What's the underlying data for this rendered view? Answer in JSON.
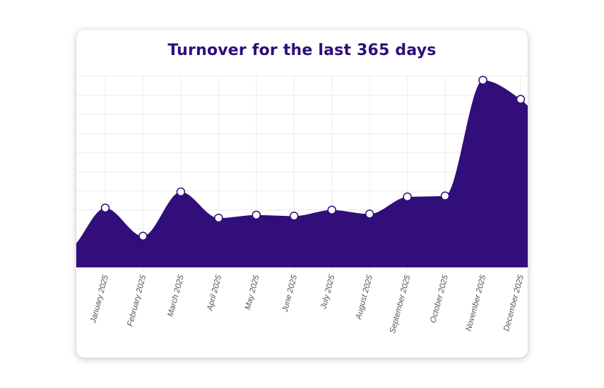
{
  "chart_data": {
    "type": "area",
    "title": "Turnover for the last 365 days",
    "xlabel": "",
    "ylabel": "",
    "categories": [
      "January 2025",
      "February 2025",
      "March 2025",
      "April 2025",
      "May 2025",
      "June 2025",
      "July 2025",
      "August 2025",
      "September 2025",
      "October 2025",
      "November 2025",
      "December 2025"
    ],
    "series": [
      {
        "values": [
          2.95,
          1.55,
          3.75,
          2.45,
          2.6,
          2.55,
          2.85,
          2.65,
          3.5,
          3.55,
          9.3,
          8.35
        ],
        "color": "#310e7a"
      }
    ],
    "start_value": 1.2,
    "ylim": [
      0,
      9.5
    ],
    "grid": true,
    "y_tick_labels_visible": false,
    "markers": true,
    "legend": "none"
  },
  "colors": {
    "title": "#2d0f7a",
    "area_fill": "#310e7a",
    "marker_fill": "#ffffff",
    "marker_stroke": "#2d0f7a",
    "grid": "#ececec"
  }
}
